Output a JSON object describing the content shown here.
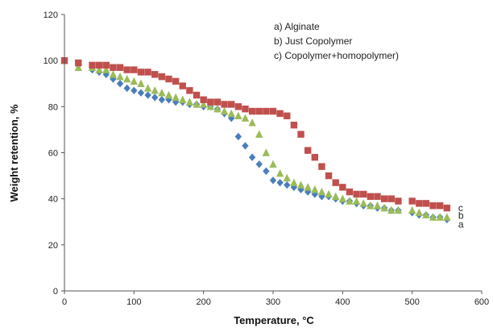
{
  "chart_data": {
    "type": "scatter",
    "xlabel": "Temperature, °C",
    "ylabel": "Weight retention, %",
    "xlim": [
      0,
      600
    ],
    "ylim": [
      0,
      120
    ],
    "x_ticks": [
      "0",
      "100",
      "200",
      "300",
      "400",
      "500",
      "600"
    ],
    "y_ticks": [
      "0",
      "20",
      "40",
      "60",
      "80",
      "100",
      "120"
    ],
    "grid": false,
    "legend": {
      "placement": "top-right",
      "entries": [
        "a)  Alginate",
        "b)  Just Copolymer",
        "c)  Copolymer+homopolymer)"
      ]
    },
    "series": [
      {
        "name": "a)  Alginate",
        "end_label": "a",
        "color": "#4a7ebb",
        "marker": "diamond",
        "points": [
          [
            0,
            100
          ],
          [
            20,
            98
          ],
          [
            40,
            96
          ],
          [
            50,
            95
          ],
          [
            60,
            94
          ],
          [
            70,
            92
          ],
          [
            80,
            90
          ],
          [
            90,
            88
          ],
          [
            100,
            87
          ],
          [
            110,
            86
          ],
          [
            120,
            85
          ],
          [
            130,
            84
          ],
          [
            140,
            83
          ],
          [
            150,
            83
          ],
          [
            160,
            82
          ],
          [
            170,
            82
          ],
          [
            180,
            81
          ],
          [
            190,
            81
          ],
          [
            200,
            80
          ],
          [
            210,
            80
          ],
          [
            220,
            79
          ],
          [
            230,
            77
          ],
          [
            240,
            75
          ],
          [
            250,
            67
          ],
          [
            260,
            63
          ],
          [
            270,
            58
          ],
          [
            280,
            55
          ],
          [
            290,
            52
          ],
          [
            300,
            48
          ],
          [
            310,
            47
          ],
          [
            320,
            46
          ],
          [
            330,
            45
          ],
          [
            340,
            44
          ],
          [
            350,
            43
          ],
          [
            360,
            42
          ],
          [
            370,
            41
          ],
          [
            380,
            41
          ],
          [
            390,
            40
          ],
          [
            400,
            39
          ],
          [
            410,
            39
          ],
          [
            420,
            38
          ],
          [
            430,
            37
          ],
          [
            440,
            37
          ],
          [
            450,
            36
          ],
          [
            460,
            36
          ],
          [
            470,
            35
          ],
          [
            480,
            35
          ],
          [
            500,
            34
          ],
          [
            510,
            33
          ],
          [
            520,
            33
          ],
          [
            530,
            32
          ],
          [
            540,
            32
          ],
          [
            550,
            31
          ]
        ]
      },
      {
        "name": "b)  Just Copolymer",
        "end_label": "b",
        "color": "#9bbb59",
        "marker": "triangle",
        "points": [
          [
            0,
            100
          ],
          [
            20,
            97
          ],
          [
            40,
            97
          ],
          [
            50,
            96
          ],
          [
            60,
            96
          ],
          [
            70,
            94
          ],
          [
            80,
            93
          ],
          [
            90,
            92
          ],
          [
            100,
            91
          ],
          [
            110,
            90
          ],
          [
            120,
            88
          ],
          [
            130,
            87
          ],
          [
            140,
            86
          ],
          [
            150,
            85
          ],
          [
            160,
            84
          ],
          [
            170,
            83
          ],
          [
            180,
            82
          ],
          [
            190,
            81
          ],
          [
            200,
            81
          ],
          [
            210,
            80
          ],
          [
            220,
            79
          ],
          [
            230,
            78
          ],
          [
            240,
            77
          ],
          [
            250,
            76
          ],
          [
            260,
            75
          ],
          [
            270,
            73
          ],
          [
            280,
            68
          ],
          [
            290,
            60
          ],
          [
            300,
            55
          ],
          [
            310,
            51
          ],
          [
            320,
            49
          ],
          [
            330,
            47
          ],
          [
            340,
            46
          ],
          [
            350,
            45
          ],
          [
            360,
            44
          ],
          [
            370,
            43
          ],
          [
            380,
            42
          ],
          [
            390,
            41
          ],
          [
            400,
            40
          ],
          [
            410,
            39
          ],
          [
            420,
            39
          ],
          [
            430,
            38
          ],
          [
            440,
            37
          ],
          [
            450,
            37
          ],
          [
            460,
            36
          ],
          [
            470,
            35
          ],
          [
            480,
            35
          ],
          [
            500,
            35
          ],
          [
            510,
            34
          ],
          [
            520,
            33
          ],
          [
            530,
            32
          ],
          [
            540,
            32
          ],
          [
            550,
            32
          ]
        ]
      },
      {
        "name": "c)  Copolymer+homopolymer)",
        "end_label": "c",
        "color": "#c0504d",
        "marker": "square",
        "points": [
          [
            0,
            100
          ],
          [
            20,
            99
          ],
          [
            40,
            98
          ],
          [
            50,
            98
          ],
          [
            60,
            98
          ],
          [
            70,
            97
          ],
          [
            80,
            97
          ],
          [
            90,
            96
          ],
          [
            100,
            96
          ],
          [
            110,
            95
          ],
          [
            120,
            95
          ],
          [
            130,
            94
          ],
          [
            140,
            93
          ],
          [
            150,
            92
          ],
          [
            160,
            91
          ],
          [
            170,
            89
          ],
          [
            180,
            87
          ],
          [
            190,
            85
          ],
          [
            200,
            83
          ],
          [
            210,
            82
          ],
          [
            220,
            82
          ],
          [
            230,
            81
          ],
          [
            240,
            81
          ],
          [
            250,
            80
          ],
          [
            260,
            79
          ],
          [
            270,
            78
          ],
          [
            280,
            78
          ],
          [
            290,
            78
          ],
          [
            300,
            78
          ],
          [
            310,
            77
          ],
          [
            320,
            76
          ],
          [
            330,
            72
          ],
          [
            340,
            68
          ],
          [
            350,
            61
          ],
          [
            360,
            58
          ],
          [
            370,
            54
          ],
          [
            380,
            50
          ],
          [
            390,
            47
          ],
          [
            400,
            45
          ],
          [
            410,
            43
          ],
          [
            420,
            42
          ],
          [
            430,
            42
          ],
          [
            440,
            41
          ],
          [
            450,
            41
          ],
          [
            460,
            40
          ],
          [
            470,
            40
          ],
          [
            480,
            39
          ],
          [
            500,
            39
          ],
          [
            510,
            38
          ],
          [
            520,
            38
          ],
          [
            530,
            37
          ],
          [
            540,
            37
          ],
          [
            550,
            36
          ]
        ]
      }
    ]
  }
}
